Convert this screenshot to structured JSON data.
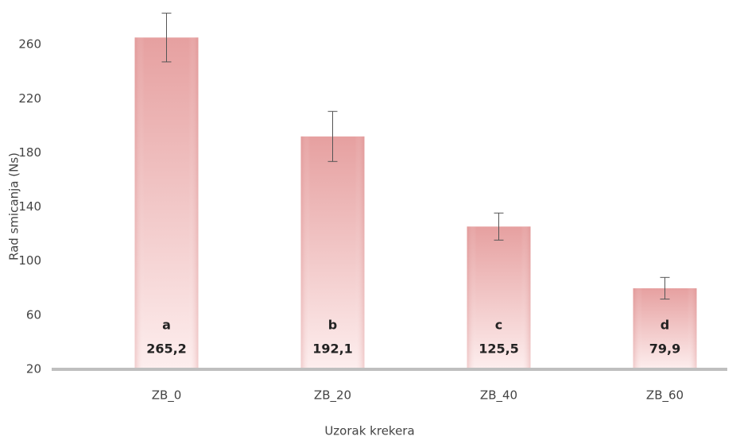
{
  "chart_data": {
    "type": "bar",
    "x_label": "Uzorak krekera",
    "y_label": "Rad smicanja (Ns)",
    "categories": [
      "ZB_0",
      "ZB_20",
      "ZB_40",
      "ZB_60"
    ],
    "values": [
      265.2,
      192.1,
      125.5,
      79.9
    ],
    "value_labels": [
      "265,2",
      "192,1",
      "125,5",
      "79,9"
    ],
    "errors": [
      18,
      18.5,
      10,
      8
    ],
    "letters": [
      "a",
      "b",
      "c",
      "d"
    ],
    "color": "#e79a9a",
    "ylim": [
      20,
      290
    ],
    "yticks": [
      20,
      60,
      100,
      140,
      180,
      220,
      260
    ],
    "grid": false
  }
}
